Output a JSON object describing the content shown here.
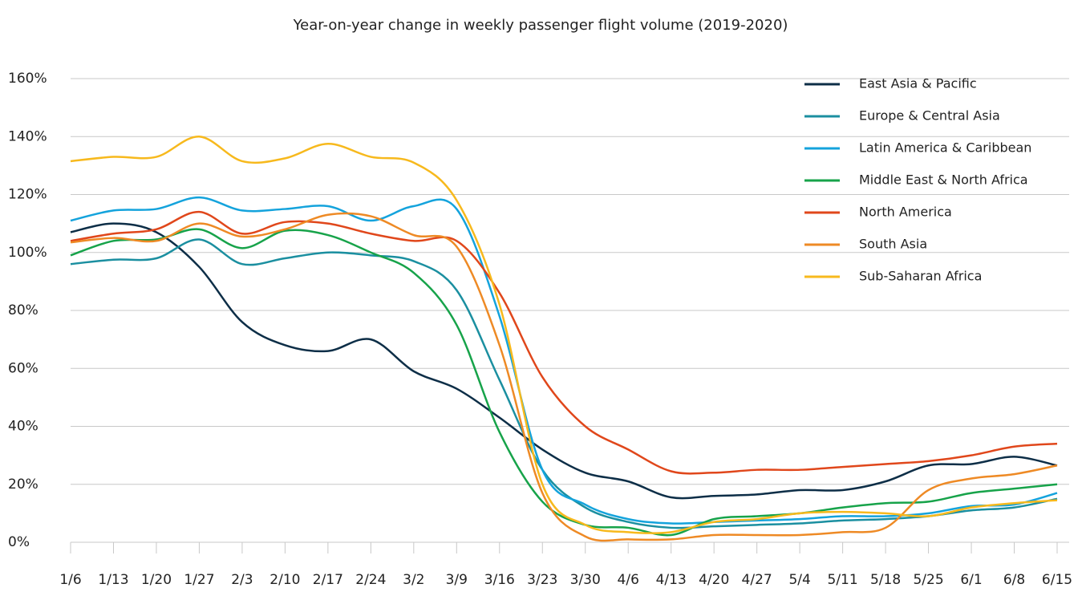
{
  "chart_data": {
    "type": "line",
    "title": "Year-on-year change in weekly passenger flight volume (2019-2020)",
    "categories": [
      "1/6",
      "1/13",
      "1/20",
      "1/27",
      "2/3",
      "2/10",
      "2/17",
      "2/24",
      "3/2",
      "3/9",
      "3/16",
      "3/23",
      "3/30",
      "4/6",
      "4/13",
      "4/20",
      "4/27",
      "5/4",
      "5/11",
      "5/18",
      "5/25",
      "6/1",
      "6/8",
      "6/15"
    ],
    "ylim": [
      0,
      160
    ],
    "yticks": [
      {
        "value": 0,
        "label": "0%"
      },
      {
        "value": 20,
        "label": "20%"
      },
      {
        "value": 40,
        "label": "40%"
      },
      {
        "value": 60,
        "label": "60%"
      },
      {
        "value": 80,
        "label": "80%"
      },
      {
        "value": 100,
        "label": "100%"
      },
      {
        "value": 120,
        "label": "120%"
      },
      {
        "value": 140,
        "label": "140%"
      },
      {
        "value": 160,
        "label": "160%"
      }
    ],
    "grid": true,
    "legend": "top-right",
    "series": [
      {
        "name": "East Asia & Pacific",
        "color": "#0d2e47",
        "values": [
          107,
          110,
          107,
          95,
          76,
          68,
          66,
          70,
          59,
          53,
          43,
          32,
          24,
          21,
          15.5,
          16,
          16.5,
          18,
          18,
          21,
          26.5,
          27,
          29.5,
          26.5
        ]
      },
      {
        "name": "Europe & Central Asia",
        "color": "#1b8fa0",
        "values": [
          96,
          97.5,
          98,
          104.5,
          96,
          98,
          100,
          99,
          97,
          87,
          56,
          25,
          12,
          7,
          5,
          5.5,
          6,
          6.5,
          7.5,
          8,
          9,
          11,
          12,
          15
        ]
      },
      {
        "name": "Latin America & Caribbean",
        "color": "#14a3dc",
        "values": [
          111,
          114.5,
          115,
          119,
          114.5,
          115,
          116,
          111,
          116,
          115,
          78,
          25,
          13,
          8,
          6.5,
          7,
          7.5,
          8,
          9,
          9,
          10,
          12.5,
          13,
          17
        ]
      },
      {
        "name": "Middle East & North Africa",
        "color": "#17a34a",
        "values": [
          99,
          104,
          104.5,
          108,
          101.5,
          107.5,
          106,
          100,
          93,
          75,
          38,
          14,
          6,
          5,
          2.5,
          8,
          9,
          10,
          12,
          13.5,
          14,
          17,
          18.5,
          20
        ]
      },
      {
        "name": "North America",
        "color": "#e0471b",
        "values": [
          104,
          106.5,
          108,
          114,
          106.5,
          110.5,
          110,
          106.5,
          104,
          104,
          86,
          57,
          40,
          32,
          24.5,
          24,
          25,
          25,
          26,
          27,
          28,
          30,
          33,
          34
        ]
      },
      {
        "name": "South Asia",
        "color": "#ee8a25",
        "values": [
          103.5,
          105,
          104,
          110,
          105.5,
          108,
          113,
          112.5,
          106,
          102,
          68,
          17,
          2,
          1,
          1,
          2.5,
          2.5,
          2.5,
          3.5,
          5,
          18,
          22,
          23.5,
          26.5
        ]
      },
      {
        "name": "Sub-Saharan Africa",
        "color": "#f7b91d",
        "values": [
          131.5,
          133,
          133,
          140,
          131.5,
          132.5,
          137.5,
          133,
          131,
          118,
          82,
          20,
          6,
          3.5,
          3.5,
          7,
          8,
          10,
          10.5,
          10,
          9,
          12,
          13.5,
          14.5
        ]
      }
    ]
  }
}
